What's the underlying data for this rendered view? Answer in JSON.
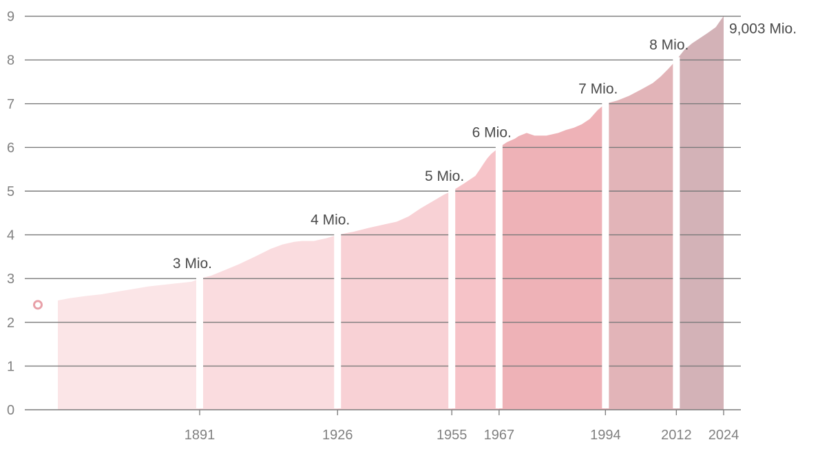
{
  "chart_data": {
    "type": "area",
    "title": "",
    "xlabel": "",
    "ylabel": "",
    "xlim": [
      1842,
      2024
    ],
    "ylim": [
      0,
      9
    ],
    "y_ticks": [
      "0",
      "1",
      "2",
      "3",
      "4",
      "5",
      "6",
      "7",
      "8",
      "9"
    ],
    "x_ticks": [
      {
        "year": 1891,
        "label": "1891"
      },
      {
        "year": 1926,
        "label": "1926"
      },
      {
        "year": 1955,
        "label": "1955"
      },
      {
        "year": 1967,
        "label": "1967"
      },
      {
        "year": 1994,
        "label": "1994"
      },
      {
        "year": 2012,
        "label": "2012"
      },
      {
        "year": 2024,
        "label": "2024"
      }
    ],
    "grid": true,
    "marker": {
      "year": 1838,
      "value": 2.4,
      "color": "#e8a0a8"
    },
    "series": [
      {
        "color": "#fbe5e7",
        "points": [
          [
            1855,
            2.5
          ],
          [
            1858,
            2.55
          ],
          [
            1862,
            2.6
          ],
          [
            1866,
            2.64
          ],
          [
            1870,
            2.7
          ],
          [
            1874,
            2.76
          ],
          [
            1878,
            2.82
          ],
          [
            1882,
            2.86
          ],
          [
            1886,
            2.9
          ],
          [
            1889,
            2.93
          ],
          [
            1891,
            3.0
          ]
        ]
      },
      {
        "color": "#fadcdf",
        "points": [
          [
            1891,
            3.0
          ],
          [
            1894,
            3.07
          ],
          [
            1897,
            3.18
          ],
          [
            1901,
            3.33
          ],
          [
            1905,
            3.5
          ],
          [
            1909,
            3.68
          ],
          [
            1912,
            3.78
          ],
          [
            1915,
            3.84
          ],
          [
            1917,
            3.86
          ],
          [
            1920,
            3.86
          ],
          [
            1923,
            3.92
          ],
          [
            1926,
            4.0
          ]
        ]
      },
      {
        "color": "#f8d1d5",
        "points": [
          [
            1926,
            4.0
          ],
          [
            1930,
            4.07
          ],
          [
            1934,
            4.16
          ],
          [
            1938,
            4.24
          ],
          [
            1941,
            4.3
          ],
          [
            1944,
            4.42
          ],
          [
            1947,
            4.6
          ],
          [
            1950,
            4.76
          ],
          [
            1953,
            4.92
          ],
          [
            1955,
            5.0
          ]
        ]
      },
      {
        "color": "#f6c3c8",
        "points": [
          [
            1955,
            5.0
          ],
          [
            1958,
            5.17
          ],
          [
            1961,
            5.35
          ],
          [
            1962,
            5.48
          ],
          [
            1963,
            5.62
          ],
          [
            1964,
            5.75
          ],
          [
            1965,
            5.85
          ],
          [
            1967,
            6.0
          ]
        ]
      },
      {
        "color": "#eeb2b7",
        "points": [
          [
            1967,
            6.0
          ],
          [
            1969,
            6.12
          ],
          [
            1971,
            6.2
          ],
          [
            1972,
            6.26
          ],
          [
            1974,
            6.33
          ],
          [
            1976,
            6.27
          ],
          [
            1979,
            6.27
          ],
          [
            1982,
            6.33
          ],
          [
            1984,
            6.4
          ],
          [
            1986,
            6.45
          ],
          [
            1988,
            6.53
          ],
          [
            1990,
            6.65
          ],
          [
            1992,
            6.85
          ],
          [
            1994,
            7.0
          ]
        ]
      },
      {
        "color": "#e2b4b8",
        "points": [
          [
            1994,
            7.0
          ],
          [
            1997,
            7.07
          ],
          [
            2000,
            7.18
          ],
          [
            2003,
            7.32
          ],
          [
            2006,
            7.47
          ],
          [
            2008,
            7.62
          ],
          [
            2010,
            7.8
          ],
          [
            2012,
            8.0
          ]
        ]
      },
      {
        "color": "#d3b2b7",
        "points": [
          [
            2012,
            8.0
          ],
          [
            2014,
            8.23
          ],
          [
            2016,
            8.38
          ],
          [
            2018,
            8.5
          ],
          [
            2020,
            8.62
          ],
          [
            2022,
            8.75
          ],
          [
            2023,
            8.88
          ],
          [
            2024,
            9.003
          ]
        ]
      }
    ],
    "annotations": [
      {
        "label": "3 Mio.",
        "year": 1891,
        "value": 3.0,
        "anchor": "end"
      },
      {
        "label": "4 Mio.",
        "year": 1926,
        "value": 4.0,
        "anchor": "end"
      },
      {
        "label": "5 Mio.",
        "year": 1955,
        "value": 5.0,
        "anchor": "end"
      },
      {
        "label": "6 Mio.",
        "year": 1967,
        "value": 6.0,
        "anchor": "end"
      },
      {
        "label": "7 Mio.",
        "year": 1994,
        "value": 7.0,
        "anchor": "end"
      },
      {
        "label": "8 Mio.",
        "year": 2012,
        "value": 8.0,
        "anchor": "end"
      },
      {
        "label": "9,003 Mio.",
        "year": 2024,
        "value": 9.003,
        "anchor": "start"
      }
    ]
  }
}
